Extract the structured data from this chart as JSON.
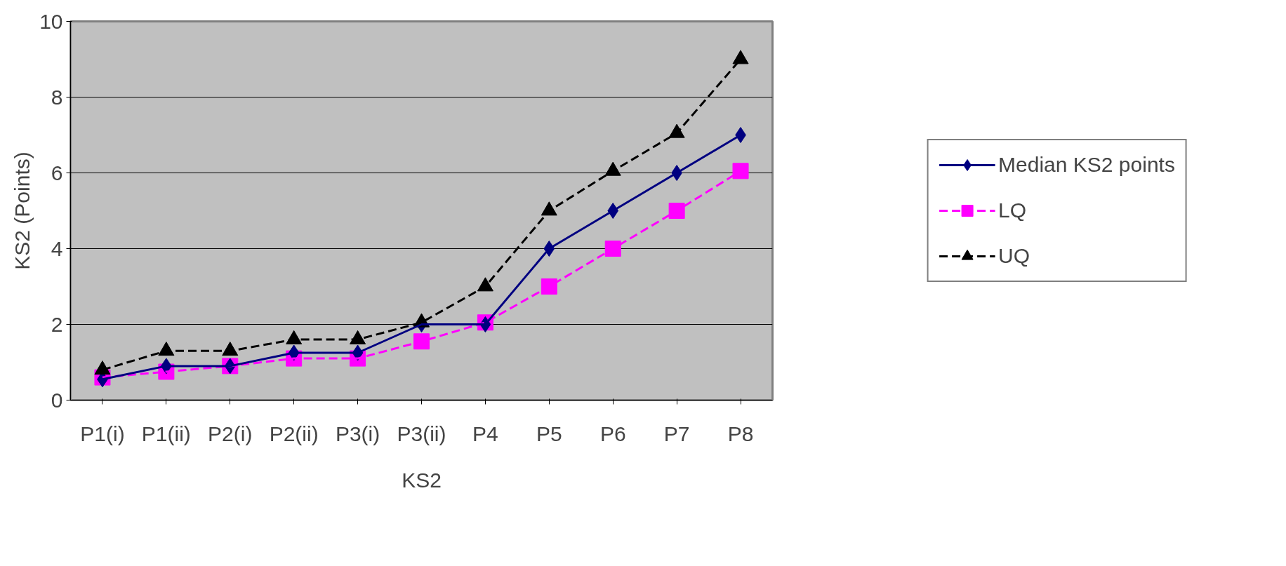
{
  "chart_data": {
    "type": "line",
    "xlabel": "KS2",
    "ylabel": "KS2 (Points)",
    "categories": [
      "P1(i)",
      "P1(ii)",
      "P2(i)",
      "P2(ii)",
      "P3(i)",
      "P3(ii)",
      "P4",
      "P5",
      "P6",
      "P7",
      "P8"
    ],
    "series": [
      {
        "name": "Median KS2 points",
        "color": "#000080",
        "marker": "diamond",
        "line_style": "solid",
        "values": [
          0.55,
          0.9,
          0.9,
          1.25,
          1.25,
          2.0,
          2.0,
          4.0,
          5.0,
          6.0,
          7.0
        ]
      },
      {
        "name": "LQ",
        "color": "#ff00ff",
        "marker": "square",
        "line_style": "dashed",
        "values": [
          0.6,
          0.75,
          0.9,
          1.1,
          1.1,
          1.55,
          2.05,
          3.0,
          4.0,
          5.0,
          6.05
        ]
      },
      {
        "name": "UQ",
        "color": "#000000",
        "marker": "triangle",
        "line_style": "dashed",
        "values": [
          0.8,
          1.3,
          1.3,
          1.6,
          1.6,
          2.05,
          3.0,
          5.0,
          6.05,
          7.05,
          9.0
        ]
      }
    ],
    "ylim": [
      0,
      10
    ],
    "yticks": [
      0,
      2,
      4,
      6,
      8,
      10
    ],
    "grid": "y",
    "legend": "right"
  }
}
